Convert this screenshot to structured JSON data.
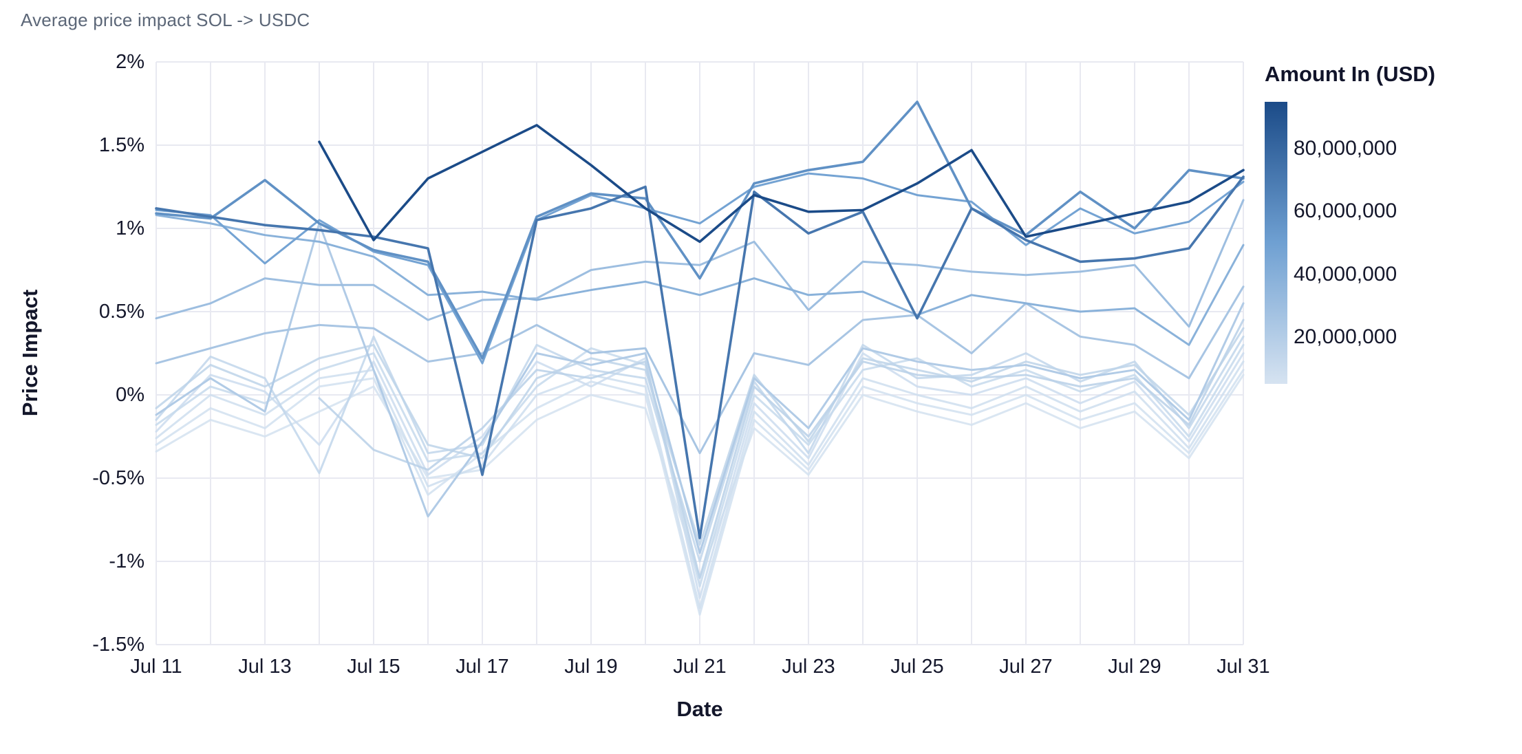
{
  "header": {
    "title": "Average price impact SOL -> USDC"
  },
  "axes": {
    "x_label": "Date",
    "y_label": "Price Impact",
    "x_tick_every": 2,
    "y_ticks": [
      {
        "label": "2%",
        "value": 2.0
      },
      {
        "label": "1.5%",
        "value": 1.5
      },
      {
        "label": "1%",
        "value": 1.0
      },
      {
        "label": "0.5%",
        "value": 0.5
      },
      {
        "label": "0%",
        "value": 0.0
      },
      {
        "label": "-0.5%",
        "value": -0.5
      },
      {
        "label": "-1%",
        "value": -1.0
      },
      {
        "label": "-1.5%",
        "value": -1.5
      }
    ]
  },
  "legend": {
    "title": "Amount In (USD)",
    "min_value": 5000000,
    "max_value": 95000000,
    "ticks": [
      {
        "label": "80,000,000",
        "value": 80000000
      },
      {
        "label": "60,000,000",
        "value": 60000000
      },
      {
        "label": "40,000,000",
        "value": 40000000
      },
      {
        "label": "20,000,000",
        "value": 20000000
      }
    ]
  },
  "colors": {
    "scale_light": "#d6e3f1",
    "scale_mid": "#6fa0d2",
    "scale_dark": "#1b4b88",
    "grid": "#e8e9f1",
    "tick_text": "#14172b",
    "title_text": "#5c6778"
  },
  "chart_data": {
    "type": "line",
    "title": "Average price impact SOL -> USDC",
    "xlabel": "Date",
    "ylabel": "Price Impact",
    "unit": "%",
    "ylim": [
      -1.5,
      2
    ],
    "grid": true,
    "legend_position": "right",
    "x": [
      "Jul 11",
      "Jul 12",
      "Jul 13",
      "Jul 14",
      "Jul 15",
      "Jul 16",
      "Jul 17",
      "Jul 18",
      "Jul 19",
      "Jul 20",
      "Jul 21",
      "Jul 22",
      "Jul 23",
      "Jul 24",
      "Jul 25",
      "Jul 26",
      "Jul 27",
      "Jul 28",
      "Jul 29",
      "Jul 30",
      "Jul 31"
    ],
    "series": [
      {
        "name": "6,000,000",
        "amount": 6000000,
        "values": [
          -0.34,
          -0.15,
          -0.25,
          -0.1,
          0.05,
          -0.5,
          -0.45,
          -0.15,
          0.0,
          -0.08,
          -1.1,
          -0.2,
          -0.48,
          0.0,
          -0.1,
          -0.18,
          -0.05,
          -0.2,
          -0.1,
          -0.38,
          0.12
        ]
      },
      {
        "name": "7,000,000",
        "amount": 7000000,
        "values": [
          -0.3,
          -0.08,
          -0.2,
          0.05,
          0.1,
          -0.6,
          -0.35,
          -0.08,
          0.08,
          0.0,
          -1.32,
          -0.15,
          -0.45,
          0.05,
          -0.05,
          -0.12,
          0.0,
          -0.15,
          -0.05,
          -0.35,
          0.15
        ]
      },
      {
        "name": "8,500,000",
        "amount": 8500000,
        "values": [
          -0.26,
          0.0,
          -0.12,
          0.1,
          0.15,
          -0.55,
          -0.42,
          0.0,
          0.12,
          0.05,
          -1.28,
          -0.1,
          -0.42,
          0.1,
          0.0,
          -0.08,
          0.05,
          -0.1,
          0.02,
          -0.32,
          0.2
        ]
      },
      {
        "name": "10,000,000",
        "amount": 10000000,
        "values": [
          -0.22,
          0.12,
          0.02,
          -0.3,
          0.2,
          -0.48,
          -0.25,
          0.2,
          0.05,
          0.22,
          -1.22,
          -0.05,
          -0.38,
          0.25,
          0.05,
          0.0,
          0.1,
          -0.05,
          0.08,
          -0.28,
          0.25
        ]
      },
      {
        "name": "12,000,000",
        "amount": 12000000,
        "values": [
          -0.18,
          0.05,
          -0.05,
          0.15,
          0.25,
          -0.4,
          -0.35,
          0.05,
          0.28,
          0.18,
          -1.15,
          0.0,
          -0.3,
          0.15,
          0.22,
          0.05,
          0.15,
          0.02,
          0.12,
          -0.25,
          0.3
        ]
      },
      {
        "name": "14,000,000",
        "amount": 14000000,
        "values": [
          -0.15,
          0.23,
          0.1,
          -0.47,
          0.35,
          -0.35,
          -0.3,
          0.3,
          0.15,
          0.1,
          -1.0,
          0.08,
          -0.35,
          0.3,
          0.1,
          0.12,
          0.25,
          0.08,
          0.2,
          -0.2,
          0.35
        ]
      },
      {
        "name": "16,000,000",
        "amount": 16000000,
        "values": [
          -0.08,
          0.18,
          0.05,
          0.22,
          0.3,
          -0.3,
          -0.38,
          0.1,
          0.22,
          0.15,
          -0.9,
          0.12,
          -0.28,
          0.22,
          0.15,
          0.08,
          0.2,
          0.12,
          0.18,
          -0.12,
          0.4
        ]
      },
      {
        "name": "18,000,000",
        "amount": 18000000,
        "values": [
          null,
          null,
          null,
          -0.02,
          -0.33,
          -0.45,
          -0.2,
          0.15,
          0.1,
          0.2,
          -1.1,
          0.05,
          -0.25,
          0.2,
          0.12,
          0.1,
          0.12,
          0.05,
          0.1,
          -0.18,
          0.45
        ]
      },
      {
        "name": "21,000,000",
        "amount": 21000000,
        "values": [
          -0.12,
          0.1,
          -0.1,
          1.03,
          0.15,
          -0.73,
          -0.28,
          0.25,
          0.18,
          0.25,
          -0.95,
          0.1,
          -0.2,
          0.28,
          0.2,
          0.15,
          0.18,
          0.1,
          0.15,
          -0.15,
          0.55
        ]
      },
      {
        "name": "25,000,000",
        "amount": 25000000,
        "values": [
          0.19,
          0.28,
          0.37,
          0.42,
          0.4,
          0.2,
          0.25,
          0.42,
          0.25,
          0.28,
          -0.35,
          0.25,
          0.18,
          0.45,
          0.48,
          0.25,
          0.55,
          0.35,
          0.3,
          0.1,
          0.65
        ]
      },
      {
        "name": "30,000,000",
        "amount": 30000000,
        "values": [
          0.46,
          0.55,
          0.7,
          0.66,
          0.66,
          0.45,
          0.57,
          0.58,
          0.75,
          0.8,
          0.78,
          0.92,
          0.51,
          0.8,
          0.78,
          0.74,
          0.72,
          0.74,
          0.78,
          0.41,
          1.17
        ]
      },
      {
        "name": "38,000,000",
        "amount": 38000000,
        "values": [
          1.08,
          1.03,
          0.96,
          0.92,
          0.83,
          0.6,
          0.62,
          0.57,
          0.63,
          0.68,
          0.6,
          0.7,
          0.6,
          0.62,
          0.48,
          0.6,
          0.55,
          0.5,
          0.52,
          0.3,
          0.9
        ]
      },
      {
        "name": "48,000,000",
        "amount": 48000000,
        "values": [
          1.11,
          1.08,
          0.79,
          1.05,
          0.86,
          0.78,
          0.19,
          1.05,
          1.2,
          1.12,
          1.03,
          1.25,
          1.33,
          1.3,
          1.2,
          1.16,
          0.9,
          1.12,
          0.97,
          1.04,
          1.28
        ]
      },
      {
        "name": "58,000,000",
        "amount": 58000000,
        "values": [
          1.09,
          1.06,
          1.29,
          1.03,
          0.87,
          0.8,
          0.22,
          1.07,
          1.21,
          1.18,
          0.7,
          1.27,
          1.35,
          1.4,
          1.76,
          1.12,
          0.96,
          1.22,
          1.0,
          1.35,
          1.3
        ]
      },
      {
        "name": "72,000,000",
        "amount": 72000000,
        "values": [
          1.12,
          1.07,
          1.02,
          0.99,
          0.95,
          0.88,
          -0.48,
          1.05,
          1.12,
          1.25,
          -0.86,
          1.22,
          0.97,
          1.1,
          0.46,
          1.12,
          0.93,
          0.8,
          0.82,
          0.88,
          1.31
        ]
      },
      {
        "name": "95,000,000",
        "amount": 95000000,
        "values": [
          null,
          null,
          null,
          1.52,
          0.93,
          1.3,
          1.46,
          1.62,
          1.38,
          1.12,
          0.92,
          1.2,
          1.1,
          1.11,
          1.27,
          1.47,
          0.95,
          1.02,
          1.09,
          1.16,
          1.35
        ]
      }
    ]
  }
}
